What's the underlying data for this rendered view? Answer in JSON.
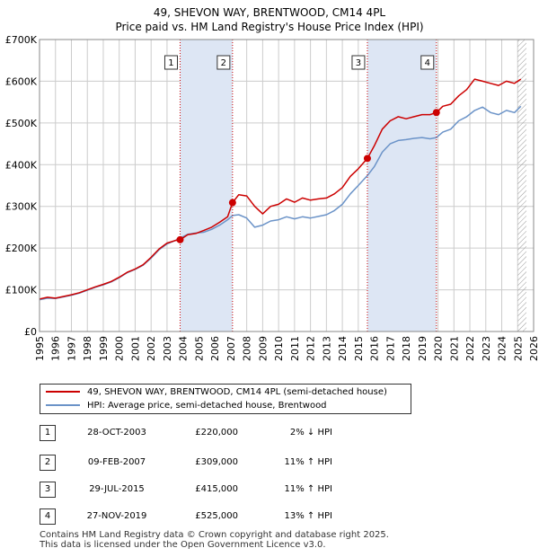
{
  "title_line1": "49, SHEVON WAY, BRENTWOOD, CM14 4PL",
  "title_line2": "Price paid vs. HM Land Registry's House Price Index (HPI)",
  "legend": {
    "property_label": "49, SHEVON WAY, BRENTWOOD, CM14 4PL (semi-detached house)",
    "hpi_label": "HPI: Average price, semi-detached house, Brentwood"
  },
  "transactions": [
    {
      "num": "1",
      "date": "28-OCT-2003",
      "price": "£220,000",
      "hpi": "2% ↓ HPI"
    },
    {
      "num": "2",
      "date": "09-FEB-2007",
      "price": "£309,000",
      "hpi": "11% ↑ HPI"
    },
    {
      "num": "3",
      "date": "29-JUL-2015",
      "price": "£415,000",
      "hpi": "11% ↑ HPI"
    },
    {
      "num": "4",
      "date": "27-NOV-2019",
      "price": "£525,000",
      "hpi": "13% ↑ HPI"
    }
  ],
  "footer": {
    "line1": "Contains HM Land Registry data © Crown copyright and database right 2025.",
    "line2": "This data is licensed under the Open Government Licence v3.0."
  },
  "colors": {
    "property": "#cc0000",
    "hpi": "#6b93c8",
    "shade": "#dde6f4",
    "marker_line": "#cc0000"
  },
  "chart_data": {
    "type": "line",
    "title": "Price paid vs. HM Land Registry's House Price Index (HPI)",
    "xlabel": "",
    "ylabel": "",
    "xlim": [
      1995,
      2026
    ],
    "ylim": [
      0,
      700000
    ],
    "x_ticks": [
      1995,
      1996,
      1997,
      1998,
      1999,
      2000,
      2001,
      2002,
      2003,
      2004,
      2005,
      2006,
      2007,
      2008,
      2009,
      2010,
      2011,
      2012,
      2013,
      2014,
      2015,
      2016,
      2017,
      2018,
      2019,
      2020,
      2021,
      2022,
      2023,
      2024,
      2025,
      2026
    ],
    "y_ticks": [
      0,
      100000,
      200000,
      300000,
      400000,
      500000,
      600000,
      700000
    ],
    "y_tick_labels": [
      "£0",
      "£100K",
      "£200K",
      "£300K",
      "£400K",
      "£500K",
      "£600K",
      "£700K"
    ],
    "grid": true,
    "legend_position": "below",
    "shaded_periods": [
      [
        2003.82,
        2007.11
      ],
      [
        2015.57,
        2019.9
      ]
    ],
    "forecast_hatch_from": 2025.0,
    "series": [
      {
        "name": "49, SHEVON WAY, BRENTWOOD, CM14 4PL (semi-detached house)",
        "x": [
          1995.0,
          1995.5,
          1996.0,
          1996.5,
          1997.0,
          1997.5,
          1998.0,
          1998.5,
          1999.0,
          1999.5,
          2000.0,
          2000.5,
          2001.0,
          2001.5,
          2002.0,
          2002.5,
          2003.0,
          2003.5,
          2003.82,
          2004.3,
          2004.8,
          2005.3,
          2005.8,
          2006.3,
          2006.8,
          2007.11,
          2007.5,
          2008.0,
          2008.5,
          2009.0,
          2009.5,
          2010.0,
          2010.5,
          2011.0,
          2011.5,
          2012.0,
          2012.5,
          2013.0,
          2013.5,
          2014.0,
          2014.5,
          2015.0,
          2015.57,
          2016.0,
          2016.5,
          2017.0,
          2017.5,
          2018.0,
          2018.5,
          2019.0,
          2019.5,
          2019.9,
          2020.3,
          2020.8,
          2021.3,
          2021.8,
          2022.3,
          2022.8,
          2023.3,
          2023.8,
          2024.3,
          2024.8,
          2025.2
        ],
        "values": [
          78000,
          82000,
          80000,
          84000,
          88000,
          93000,
          100000,
          107000,
          113000,
          120000,
          130000,
          142000,
          150000,
          160000,
          178000,
          198000,
          212000,
          218000,
          220000,
          232000,
          235000,
          242000,
          250000,
          262000,
          275000,
          309000,
          328000,
          325000,
          300000,
          282000,
          300000,
          305000,
          318000,
          310000,
          320000,
          315000,
          318000,
          320000,
          330000,
          345000,
          372000,
          390000,
          415000,
          445000,
          485000,
          505000,
          515000,
          510000,
          515000,
          520000,
          520000,
          525000,
          540000,
          545000,
          565000,
          580000,
          605000,
          600000,
          595000,
          590000,
          600000,
          595000,
          605000
        ]
      },
      {
        "name": "HPI: Average price, semi-detached house, Brentwood",
        "x": [
          1995.0,
          1995.5,
          1996.0,
          1996.5,
          1997.0,
          1997.5,
          1998.0,
          1998.5,
          1999.0,
          1999.5,
          2000.0,
          2000.5,
          2001.0,
          2001.5,
          2002.0,
          2002.5,
          2003.0,
          2003.5,
          2003.82,
          2004.3,
          2004.8,
          2005.3,
          2005.8,
          2006.3,
          2006.8,
          2007.11,
          2007.5,
          2008.0,
          2008.5,
          2009.0,
          2009.5,
          2010.0,
          2010.5,
          2011.0,
          2011.5,
          2012.0,
          2012.5,
          2013.0,
          2013.5,
          2014.0,
          2014.5,
          2015.0,
          2015.57,
          2016.0,
          2016.5,
          2017.0,
          2017.5,
          2018.0,
          2018.5,
          2019.0,
          2019.5,
          2019.9,
          2020.3,
          2020.8,
          2021.3,
          2021.8,
          2022.3,
          2022.8,
          2023.3,
          2023.8,
          2024.3,
          2024.8,
          2025.2
        ],
        "values": [
          76000,
          80000,
          79000,
          83000,
          87000,
          92000,
          99000,
          106000,
          112000,
          119000,
          129000,
          141000,
          149000,
          159000,
          176000,
          196000,
          210000,
          218000,
          224000,
          233000,
          236000,
          238000,
          245000,
          255000,
          268000,
          278000,
          280000,
          272000,
          250000,
          255000,
          265000,
          268000,
          275000,
          270000,
          275000,
          272000,
          276000,
          280000,
          290000,
          305000,
          330000,
          350000,
          374000,
          395000,
          430000,
          450000,
          458000,
          460000,
          463000,
          465000,
          462000,
          465000,
          478000,
          485000,
          505000,
          515000,
          530000,
          538000,
          525000,
          520000,
          530000,
          525000,
          540000
        ]
      }
    ],
    "transaction_points": [
      {
        "label": "1",
        "x": 2003.82,
        "y": 220000
      },
      {
        "label": "2",
        "x": 2007.11,
        "y": 309000
      },
      {
        "label": "3",
        "x": 2015.57,
        "y": 415000
      },
      {
        "label": "4",
        "x": 2019.9,
        "y": 525000
      }
    ]
  }
}
